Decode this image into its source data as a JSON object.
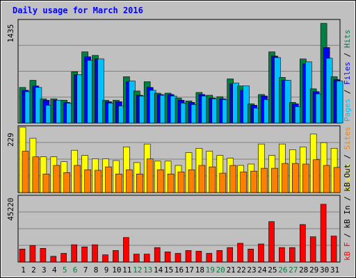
{
  "chart_data": {
    "type": "bar",
    "title": "Daily usage for March 2016",
    "categories": [
      "1",
      "2",
      "3",
      "4",
      "5",
      "6",
      "7",
      "8",
      "9",
      "10",
      "11",
      "12",
      "13",
      "14",
      "15",
      "16",
      "17",
      "18",
      "19",
      "20",
      "21",
      "22",
      "23",
      "24",
      "25",
      "26",
      "27",
      "28",
      "29",
      "30",
      "31"
    ],
    "weekend_days": [
      5,
      6,
      12,
      13,
      19,
      20,
      26,
      27
    ],
    "panels": [
      {
        "id": "hits",
        "ymax": 1435,
        "ymax_label": "1435",
        "legend": [
          "Pages",
          "Files",
          "Hits"
        ],
        "series": [
          {
            "name": "Hits",
            "color": "#008040",
            "values": [
              500,
              600,
              340,
              340,
              320,
              720,
              1000,
              950,
              320,
              320,
              650,
              450,
              580,
              420,
              420,
              350,
              310,
              430,
              390,
              370,
              620,
              520,
              270,
              400,
              1000,
              640,
              290,
              900,
              480,
              1400,
              650
            ]
          },
          {
            "name": "Files",
            "color": "#0000ff",
            "values": [
              460,
              520,
              320,
              320,
              290,
              680,
              930,
              900,
              300,
              300,
              580,
              390,
              500,
              400,
              400,
              320,
              290,
              400,
              350,
              340,
              550,
              460,
              250,
              380,
              940,
              600,
              270,
              830,
              440,
              1060,
              610
            ]
          },
          {
            "name": "Pages",
            "color": "#00c0ff",
            "values": [
              440,
              500,
              250,
              320,
              280,
              680,
              880,
              900,
              280,
              240,
              590,
              380,
              460,
              390,
              380,
              280,
              260,
              380,
              340,
              330,
              560,
              520,
              210,
              330,
              920,
              600,
              230,
              860,
              410,
              910,
              590
            ]
          }
        ]
      },
      {
        "id": "visits",
        "ymax": 229,
        "ymax_label": "229",
        "legend": [
          "Visits",
          "Sites"
        ],
        "series": [
          {
            "name": "Visits",
            "color": "#ffff00",
            "values": [
              229,
              190,
              125,
              125,
              108,
              148,
              130,
              118,
              118,
              112,
              160,
              105,
              170,
              110,
              110,
              95,
              140,
              155,
              145,
              130,
              120,
              95,
              100,
              170,
              130,
              170,
              150,
              160,
              205,
              175,
              155
            ]
          },
          {
            "name": "Sites",
            "color": "#ff8000",
            "values": [
              145,
              125,
              65,
              95,
              70,
              95,
              80,
              78,
              90,
              65,
              80,
              65,
              118,
              80,
              65,
              72,
              80,
              95,
              90,
              68,
              95,
              72,
              75,
              85,
              85,
              102,
              102,
              100,
              115,
              95,
              88
            ]
          }
        ]
      },
      {
        "id": "kbytes",
        "ymax": 45220,
        "ymax_label": "45220",
        "legend": [
          "kB F",
          "kB In",
          "kB Out"
        ],
        "series": [
          {
            "name": "kB F",
            "color": "#ff0000",
            "values": [
              9000,
              11500,
              9500,
              4000,
              6000,
              12000,
              10500,
              12000,
              5000,
              8000,
              17000,
              5500,
              5500,
              10000,
              7000,
              6000,
              8000,
              7500,
              6000,
              8000,
              10000,
              13000,
              9000,
              12500,
              28000,
              10000,
              10000,
              26000,
              17500,
              40000,
              18000
            ]
          }
        ]
      }
    ]
  }
}
